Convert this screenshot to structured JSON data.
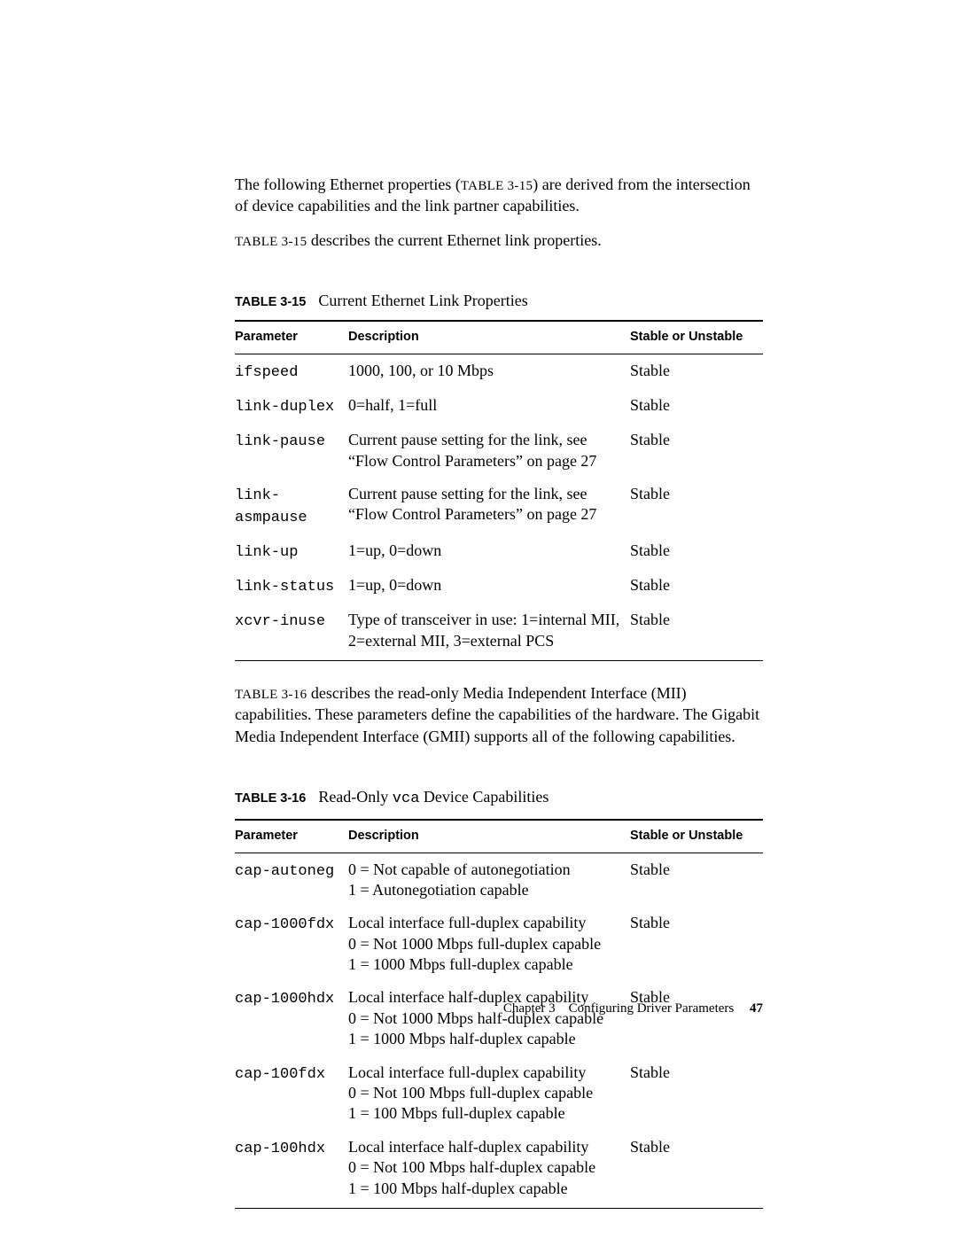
{
  "intro": {
    "p1_a": "The following Ethernet properties (",
    "p1_ref": "TABLE 3-15",
    "p1_b": ") are derived from the intersection of device capabilities and the link partner capabilities.",
    "p2_ref": "TABLE 3-15",
    "p2_rest": " describes the current Ethernet link properties."
  },
  "table15": {
    "label": "TABLE 3-15",
    "title": "Current Ethernet Link Properties",
    "headers": {
      "param": "Parameter",
      "desc": "Description",
      "stab": "Stable or Unstable"
    },
    "rows": [
      {
        "param": "ifspeed",
        "desc": [
          "1000, 100, or 10 Mbps"
        ],
        "stab": "Stable"
      },
      {
        "param": "link-duplex",
        "desc": [
          "0=half, 1=full"
        ],
        "stab": "Stable"
      },
      {
        "param": "link-pause",
        "desc": [
          "Current pause setting for the link, see “Flow Control Parameters” on page 27"
        ],
        "stab": "Stable"
      },
      {
        "param": "link-asmpause",
        "desc": [
          "Current pause setting for the link, see “Flow Control Parameters” on page 27"
        ],
        "stab": "Stable"
      },
      {
        "param": "link-up",
        "desc": [
          "1=up, 0=down"
        ],
        "stab": "Stable"
      },
      {
        "param": "link-status",
        "desc": [
          "1=up, 0=down"
        ],
        "stab": "Stable"
      },
      {
        "param": "xcvr-inuse",
        "desc": [
          "Type of transceiver in use: 1=internal MII, 2=external MII, 3=external PCS"
        ],
        "stab": "Stable"
      }
    ]
  },
  "mid": {
    "ref": "TABLE 3-16",
    "rest": " describes the read-only Media Independent Interface (MII) capabilities. These parameters define the capabilities of the hardware. The Gigabit Media Independent Interface (GMII) supports all of the following capabilities."
  },
  "table16": {
    "label": "TABLE 3-16",
    "title_a": "Read-Only ",
    "title_code": "vca",
    "title_b": " Device Capabilities",
    "headers": {
      "param": "Parameter",
      "desc": "Description",
      "stab": "Stable or Unstable"
    },
    "rows": [
      {
        "param": "cap-autoneg",
        "desc": [
          "0 = Not capable of autonegotiation",
          "1 = Autonegotiation capable"
        ],
        "stab": "Stable"
      },
      {
        "param": "cap-1000fdx",
        "desc": [
          "Local interface full-duplex capability",
          "0 = Not 1000 Mbps full-duplex capable",
          "1 = 1000 Mbps full-duplex capable"
        ],
        "stab": "Stable"
      },
      {
        "param": "cap-1000hdx",
        "desc": [
          "Local interface half-duplex capability",
          "0 = Not 1000 Mbps half-duplex capable",
          "1 = 1000 Mbps half-duplex capable"
        ],
        "stab": "Stable"
      },
      {
        "param": "cap-100fdx",
        "desc": [
          "Local interface full-duplex capability",
          "0 = Not 100 Mbps full-duplex capable",
          "1 = 100 Mbps full-duplex capable"
        ],
        "stab": "Stable"
      },
      {
        "param": "cap-100hdx",
        "desc": [
          "Local interface half-duplex capability",
          "0 = Not 100 Mbps half-duplex capable",
          "1 = 100 Mbps half-duplex capable"
        ],
        "stab": "Stable"
      }
    ]
  },
  "footer": {
    "chapter": "Chapter 3",
    "title": "Configuring Driver Parameters",
    "page": "47"
  }
}
